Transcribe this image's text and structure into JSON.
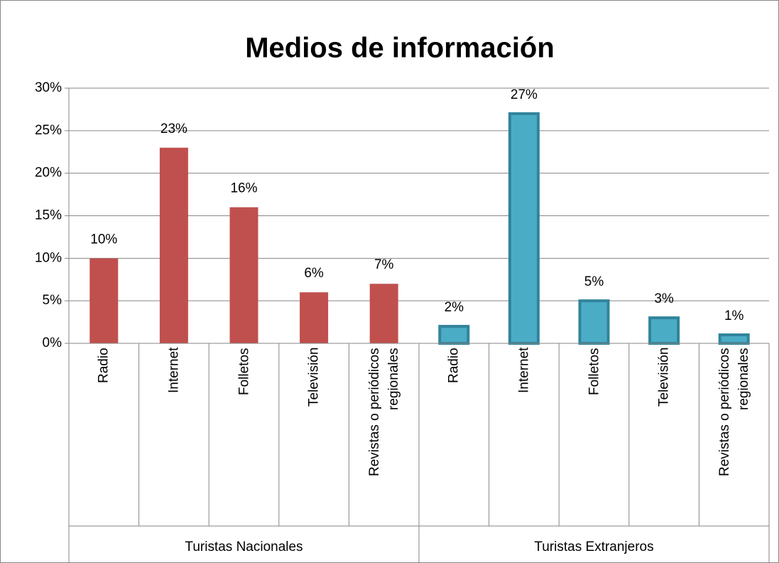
{
  "chart_data": {
    "type": "bar",
    "title": "Medios de información",
    "groups": [
      {
        "name": "Turistas Nacionales",
        "color": "#c0504d",
        "categories": [
          "Radio",
          "Internet",
          "Folletos",
          "Televisión",
          "Revistas  o periódicos regionales"
        ],
        "values": [
          10,
          23,
          16,
          6,
          7
        ],
        "value_labels": [
          "10%",
          "23%",
          "16%",
          "6%",
          "7%"
        ]
      },
      {
        "name": "Turistas Extranjeros",
        "color": "#4bacc6",
        "border_color": "#31849b",
        "categories": [
          "Radio",
          "Internet",
          "Folletos",
          "Televisión",
          "Revistas  o periódicos regionales"
        ],
        "values": [
          2,
          27,
          5,
          3,
          1
        ],
        "value_labels": [
          "2%",
          "27%",
          "5%",
          "3%",
          "1%"
        ]
      }
    ],
    "ylim": [
      0,
      30
    ],
    "yticks": [
      {
        "value": 0,
        "label": "0%"
      },
      {
        "value": 5,
        "label": "5%"
      },
      {
        "value": 10,
        "label": "10%"
      },
      {
        "value": 15,
        "label": "15%"
      },
      {
        "value": 20,
        "label": "20%"
      },
      {
        "value": 25,
        "label": "25%"
      },
      {
        "value": 30,
        "label": "30%"
      }
    ],
    "grid": true
  }
}
